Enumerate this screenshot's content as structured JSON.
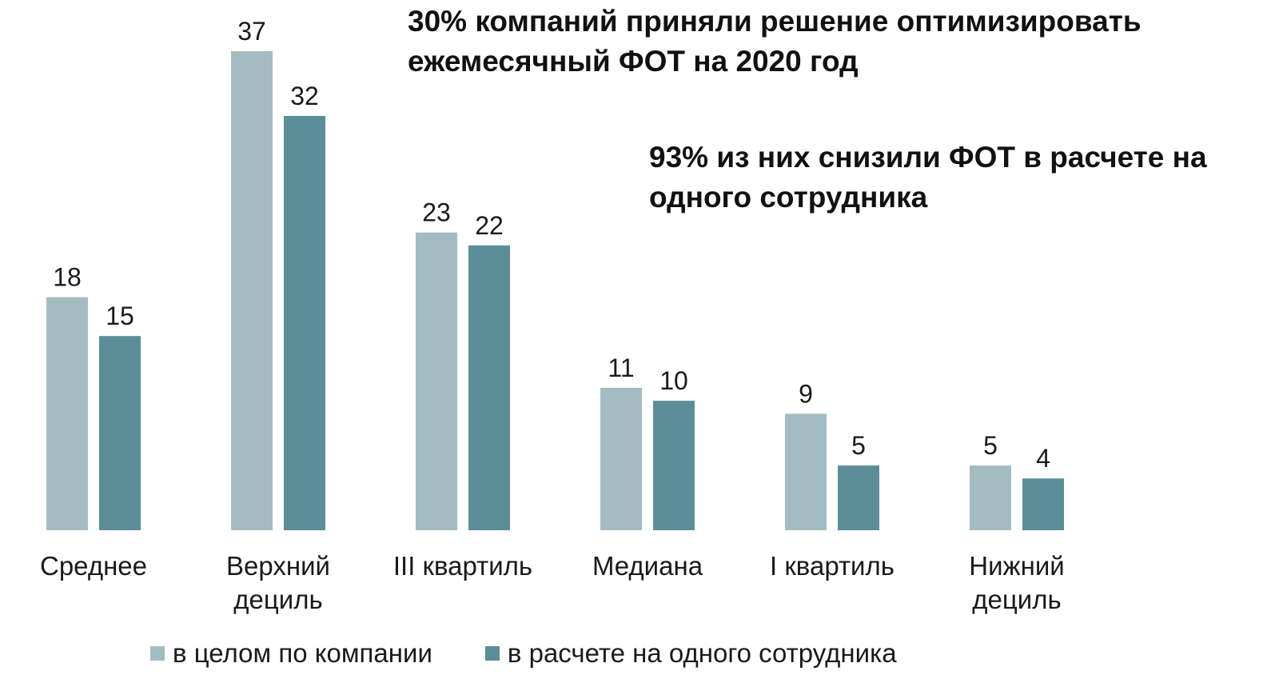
{
  "headline_1": "30% компаний приняли решение оптимизировать ежемесячный ФОТ на 2020 год",
  "headline_2": "93% из них снизили ФОТ в расчете на одного сотрудника",
  "chart_data": {
    "type": "bar",
    "title": "",
    "xlabel": "",
    "ylabel": "",
    "ylim": [
      0,
      37
    ],
    "grid": false,
    "legend_position": "bottom",
    "categories": [
      [
        "Среднее"
      ],
      [
        "Верхний",
        "дециль"
      ],
      [
        "III квартиль"
      ],
      [
        "Медиана"
      ],
      [
        "I квартиль"
      ],
      [
        "Нижний",
        "дециль"
      ]
    ],
    "series": [
      {
        "name": "в целом по компании",
        "color": "#a3bcc2",
        "values": [
          18,
          37,
          23,
          11,
          9,
          5
        ]
      },
      {
        "name": "в расчете на одного сотрудника",
        "color": "#5b8e98",
        "values": [
          15,
          32,
          22,
          10,
          5,
          4
        ]
      }
    ]
  }
}
